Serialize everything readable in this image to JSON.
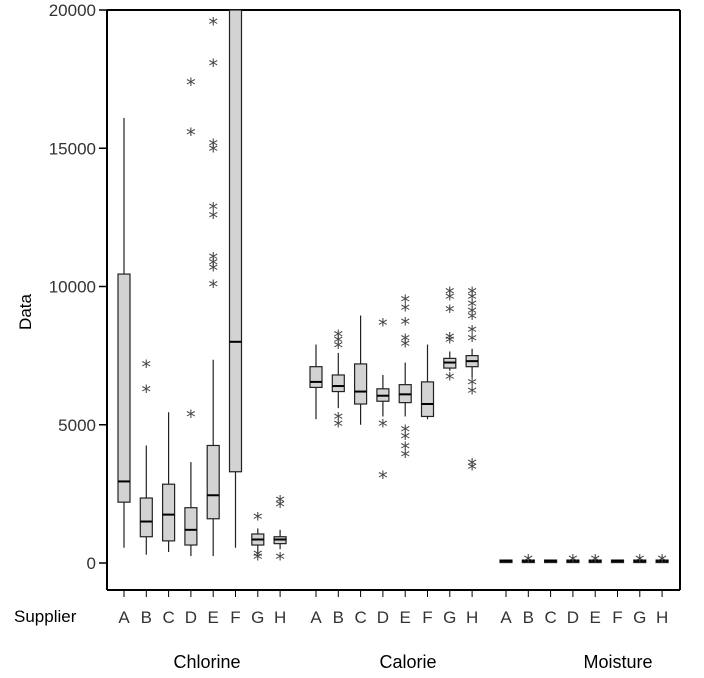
{
  "chart_data": {
    "type": "boxplot",
    "ylabel": "Data",
    "xlabel": "Supplier",
    "ylim": [
      -900,
      20000
    ],
    "y_ticks": [
      "0",
      "5000",
      "10000",
      "15000",
      "20000"
    ],
    "y_tick_values": [
      0,
      5000,
      10000,
      15000,
      20000
    ],
    "suppliers": [
      "A",
      "B",
      "C",
      "D",
      "E",
      "F",
      "G",
      "H"
    ],
    "box_fill": "#d3d3d3",
    "groups": [
      {
        "name": "Chlorine",
        "boxes": [
          {
            "supplier": "A",
            "whisker_low": 550,
            "q1": 2200,
            "median": 2950,
            "q3": 10450,
            "whisker_high": 16100,
            "outliers": []
          },
          {
            "supplier": "B",
            "whisker_low": 300,
            "q1": 950,
            "median": 1500,
            "q3": 2350,
            "whisker_high": 4250,
            "outliers": [
              6200,
              7100
            ]
          },
          {
            "supplier": "C",
            "whisker_low": 400,
            "q1": 800,
            "median": 1750,
            "q3": 2850,
            "whisker_high": 5450,
            "outliers": []
          },
          {
            "supplier": "D",
            "whisker_low": 250,
            "q1": 650,
            "median": 1200,
            "q3": 2000,
            "whisker_high": 3650,
            "outliers": [
              5300,
              15500,
              17300
            ]
          },
          {
            "supplier": "E",
            "whisker_low": 250,
            "q1": 1600,
            "median": 2450,
            "q3": 4250,
            "whisker_high": 7350,
            "outliers": [
              10000,
              10600,
              10800,
              11000,
              12500,
              12800,
              14900,
              15100,
              18000,
              19500
            ]
          },
          {
            "supplier": "F",
            "whisker_low": 550,
            "q1": 3300,
            "median": 8000,
            "q3": 20000,
            "whisker_high": 20000,
            "outliers": []
          },
          {
            "supplier": "G",
            "whisker_low": 400,
            "q1": 650,
            "median": 850,
            "q3": 1050,
            "whisker_high": 1250,
            "outliers": [
              150,
              250,
              1600
            ]
          },
          {
            "supplier": "H",
            "whisker_low": 500,
            "q1": 700,
            "median": 850,
            "q3": 950,
            "whisker_high": 1200,
            "outliers": [
              150,
              2050,
              2200
            ]
          }
        ]
      },
      {
        "name": "Calorie",
        "boxes": [
          {
            "supplier": "A",
            "whisker_low": 5200,
            "q1": 6350,
            "median": 6550,
            "q3": 7100,
            "whisker_high": 7900,
            "outliers": []
          },
          {
            "supplier": "B",
            "whisker_low": 5600,
            "q1": 6200,
            "median": 6400,
            "q3": 6800,
            "whisker_high": 7600,
            "outliers": [
              4950,
              5200,
              7800,
              8000,
              8200
            ]
          },
          {
            "supplier": "C",
            "whisker_low": 5000,
            "q1": 5750,
            "median": 6200,
            "q3": 7200,
            "whisker_high": 8950,
            "outliers": []
          },
          {
            "supplier": "D",
            "whisker_low": 5300,
            "q1": 5850,
            "median": 6050,
            "q3": 6300,
            "whisker_high": 6800,
            "outliers": [
              3100,
              4950,
              8600
            ]
          },
          {
            "supplier": "E",
            "whisker_low": 5300,
            "q1": 5800,
            "median": 6100,
            "q3": 6450,
            "whisker_high": 7250,
            "outliers": [
              3850,
              4150,
              4500,
              4750,
              7850,
              8050,
              8650,
              9150,
              9450
            ]
          },
          {
            "supplier": "F",
            "whisker_low": 5200,
            "q1": 5300,
            "median": 5750,
            "q3": 6550,
            "whisker_high": 7900,
            "outliers": []
          },
          {
            "supplier": "G",
            "whisker_low": 6950,
            "q1": 7050,
            "median": 7250,
            "q3": 7400,
            "whisker_high": 7650,
            "outliers": [
              6650,
              8000,
              8100,
              9100,
              9550,
              9750
            ]
          },
          {
            "supplier": "H",
            "whisker_low": 6700,
            "q1": 7100,
            "median": 7300,
            "q3": 7500,
            "whisker_high": 7750,
            "outliers": [
              3400,
              3550,
              6150,
              6450,
              8050,
              8350,
              8850,
              9050,
              9300,
              9550,
              9750
            ]
          }
        ]
      },
      {
        "name": "Moisture",
        "boxes": [
          {
            "supplier": "A",
            "whisker_low": 50,
            "q1": 70,
            "median": 80,
            "q3": 90,
            "whisker_high": 100,
            "outliers": []
          },
          {
            "supplier": "B",
            "whisker_low": 50,
            "q1": 70,
            "median": 80,
            "q3": 90,
            "whisker_high": 100,
            "outliers": [
              80
            ]
          },
          {
            "supplier": "C",
            "whisker_low": 50,
            "q1": 70,
            "median": 80,
            "q3": 90,
            "whisker_high": 100,
            "outliers": []
          },
          {
            "supplier": "D",
            "whisker_low": 50,
            "q1": 70,
            "median": 80,
            "q3": 90,
            "whisker_high": 100,
            "outliers": [
              80
            ]
          },
          {
            "supplier": "E",
            "whisker_low": 50,
            "q1": 70,
            "median": 80,
            "q3": 90,
            "whisker_high": 100,
            "outliers": [
              80
            ]
          },
          {
            "supplier": "F",
            "whisker_low": 50,
            "q1": 70,
            "median": 80,
            "q3": 90,
            "whisker_high": 100,
            "outliers": []
          },
          {
            "supplier": "G",
            "whisker_low": 50,
            "q1": 70,
            "median": 80,
            "q3": 90,
            "whisker_high": 100,
            "outliers": [
              80
            ]
          },
          {
            "supplier": "H",
            "whisker_low": 50,
            "q1": 70,
            "median": 80,
            "q3": 90,
            "whisker_high": 100,
            "outliers": [
              80
            ]
          }
        ]
      }
    ]
  }
}
